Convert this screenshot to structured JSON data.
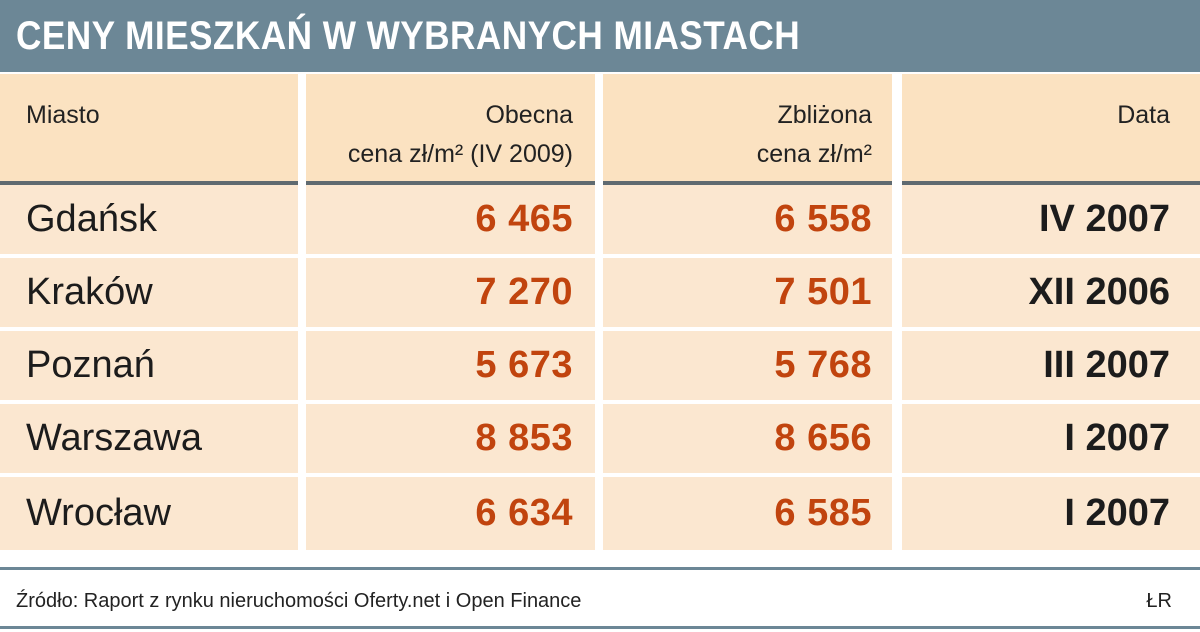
{
  "title": "CENY MIESZKAŃ W WYBRANYCH MIASTACH",
  "headers": {
    "city": "Miasto",
    "current_line1": "Obecna",
    "current_line2": "cena zł/m² (IV 2009)",
    "approx_line1": "Zbliżona",
    "approx_line2": "cena zł/m²",
    "date": "Data"
  },
  "rows": [
    {
      "city": "Gdańsk",
      "current": "6 465",
      "approx": "6 558",
      "date": "IV 2007"
    },
    {
      "city": "Kraków",
      "current": "7 270",
      "approx": "7 501",
      "date": "XII 2006"
    },
    {
      "city": "Poznań",
      "current": "5 673",
      "approx": "5 768",
      "date": "III 2007"
    },
    {
      "city": "Warszawa",
      "current": "8 853",
      "approx": "8 656",
      "date": "I 2007"
    },
    {
      "city": "Wrocław",
      "current": "6 634",
      "approx": "6 585",
      "date": "I 2007"
    }
  ],
  "source": "Źródło: Raport z rynku nieruchomości Oferty.net i Open Finance",
  "author": "ŁR",
  "colors": {
    "title_bar": "#6c8796",
    "header_bg": "#fbe2c1",
    "row_bg": "#fbe7d0",
    "value_text": "#c1440e"
  },
  "chart_data": {
    "type": "table",
    "title": "CENY MIESZKAŃ W WYBRANYCH MIASTACH",
    "columns": [
      "Miasto",
      "Obecna cena zł/m² (IV 2009)",
      "Zbliżona cena zł/m²",
      "Data"
    ],
    "rows": [
      [
        "Gdańsk",
        6465,
        6558,
        "IV 2007"
      ],
      [
        "Kraków",
        7270,
        7501,
        "XII 2006"
      ],
      [
        "Poznań",
        5673,
        5768,
        "III 2007"
      ],
      [
        "Warszawa",
        8853,
        8656,
        "I 2007"
      ],
      [
        "Wrocław",
        6634,
        6585,
        "I 2007"
      ]
    ]
  }
}
